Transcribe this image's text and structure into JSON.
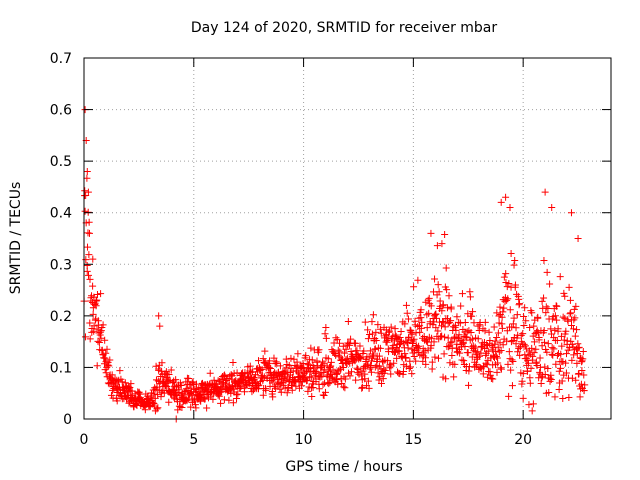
{
  "chart_data": {
    "type": "scatter",
    "title": "Day 124 of 2020, SRMTID for receiver mbar",
    "xlabel": "GPS time / hours",
    "ylabel": "SRMTID / TECUs",
    "xlim": [
      0,
      24
    ],
    "ylim": [
      0,
      0.7
    ],
    "xticks": [
      0,
      5,
      10,
      15,
      20
    ],
    "yticks": [
      0,
      0.1,
      0.2,
      0.3,
      0.4,
      0.5,
      0.6,
      0.7
    ],
    "grid": true,
    "marker": "+",
    "series": [
      {
        "name": "SRMTID",
        "color": "#ff0000",
        "envelope": {
          "x": [
            0.0,
            0.1,
            0.3,
            0.6,
            0.9,
            1.3,
            1.8,
            2.3,
            2.8,
            3.2,
            3.5,
            3.8,
            4.3,
            5.0,
            6.0,
            7.0,
            8.0,
            9.0,
            10.0,
            11.0,
            12.0,
            13.0,
            14.0,
            15.0,
            15.8,
            16.3,
            17.0,
            17.5,
            18.0,
            18.7,
            19.2,
            19.8,
            20.3,
            20.8,
            21.3,
            21.8,
            22.3,
            22.8
          ],
          "mean": [
            0.38,
            0.3,
            0.2,
            0.17,
            0.12,
            0.07,
            0.05,
            0.035,
            0.03,
            0.04,
            0.08,
            0.07,
            0.05,
            0.05,
            0.06,
            0.07,
            0.08,
            0.085,
            0.09,
            0.1,
            0.11,
            0.12,
            0.13,
            0.14,
            0.18,
            0.2,
            0.14,
            0.15,
            0.14,
            0.12,
            0.2,
            0.15,
            0.12,
            0.14,
            0.13,
            0.14,
            0.15,
            0.08
          ],
          "spread": [
            0.22,
            0.18,
            0.12,
            0.09,
            0.05,
            0.03,
            0.025,
            0.02,
            0.015,
            0.025,
            0.06,
            0.04,
            0.03,
            0.03,
            0.03,
            0.03,
            0.035,
            0.04,
            0.045,
            0.055,
            0.06,
            0.07,
            0.07,
            0.08,
            0.1,
            0.12,
            0.07,
            0.08,
            0.06,
            0.06,
            0.16,
            0.1,
            0.08,
            0.14,
            0.09,
            0.12,
            0.13,
            0.05
          ]
        },
        "peaks": [
          [
            0.05,
            0.6
          ],
          [
            0.1,
            0.54
          ],
          [
            0.15,
            0.48
          ],
          [
            0.2,
            0.44
          ],
          [
            0.25,
            0.36
          ],
          [
            0.4,
            0.31
          ],
          [
            3.4,
            0.2
          ],
          [
            3.45,
            0.18
          ],
          [
            15.8,
            0.36
          ],
          [
            16.3,
            0.34
          ],
          [
            19.0,
            0.42
          ],
          [
            19.2,
            0.43
          ],
          [
            19.4,
            0.41
          ],
          [
            21.0,
            0.44
          ],
          [
            21.3,
            0.41
          ],
          [
            22.2,
            0.4
          ],
          [
            22.5,
            0.35
          ],
          [
            4.2,
            0.0
          ],
          [
            20.0,
            0.04
          ]
        ]
      }
    ]
  }
}
